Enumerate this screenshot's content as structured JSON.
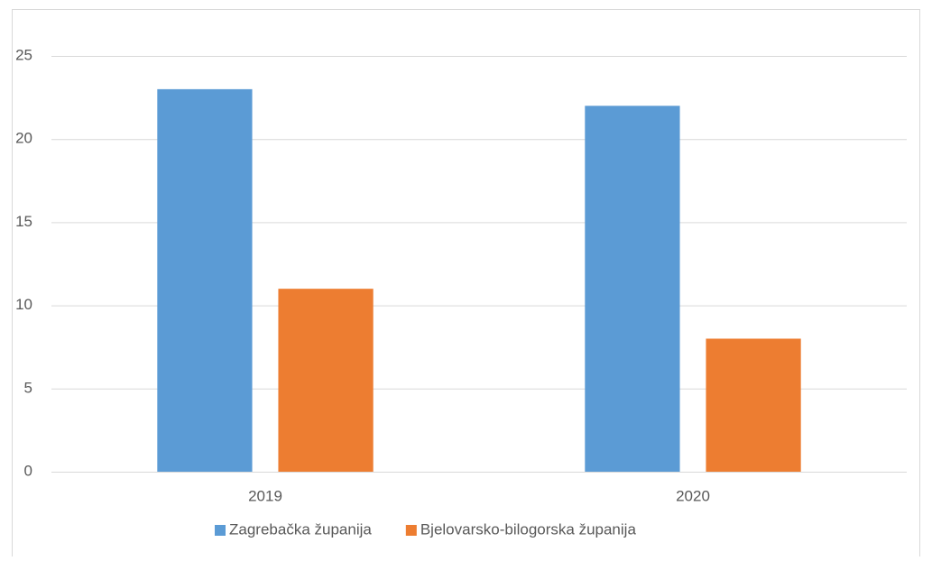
{
  "chart_data": {
    "type": "bar",
    "categories": [
      "2019",
      "2020"
    ],
    "series": [
      {
        "name": "Zagrebačka županija",
        "color": "#5b9bd5",
        "values": [
          23,
          22
        ]
      },
      {
        "name": "Bjelovarsko-bilogorska županija",
        "color": "#ed7d31",
        "values": [
          11,
          8
        ]
      }
    ],
    "ylim": [
      0,
      25
    ],
    "yticks": [
      0,
      5,
      10,
      15,
      20,
      25
    ],
    "grid": true,
    "legend": "bottom"
  }
}
